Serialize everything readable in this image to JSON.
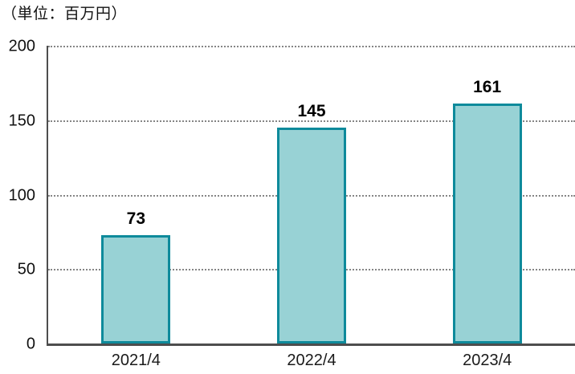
{
  "header": {
    "unit_label": "（単位：百万円）"
  },
  "chart_data": {
    "type": "bar",
    "title": "（単位：百万円）",
    "categories": [
      "2021/4",
      "2022/4",
      "2023/4"
    ],
    "values": [
      73,
      145,
      161
    ],
    "xlabel": "",
    "ylabel": "",
    "ylim": [
      0,
      200
    ],
    "yticks": [
      0,
      50,
      100,
      150,
      200
    ],
    "grid": "horizontal-dotted",
    "legend": "none",
    "colors": {
      "bar_fill": "#98d2d5",
      "bar_border": "#0e8a9b",
      "axis": "#4d4d4d",
      "gridline": "#858585",
      "text": "#111111"
    }
  }
}
